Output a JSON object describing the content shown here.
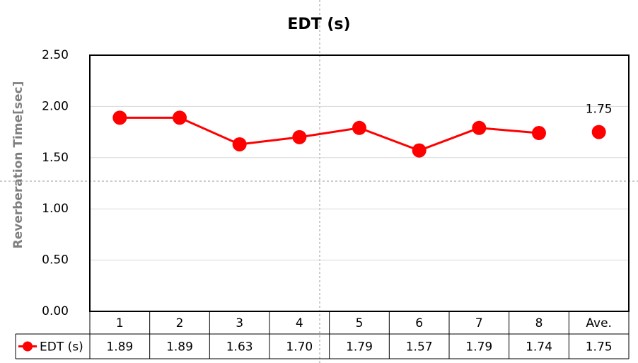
{
  "chart_data": {
    "type": "line",
    "title": "EDT  (s)",
    "y_label": "Reverberation Time[sec]",
    "categories": [
      "1",
      "2",
      "3",
      "4",
      "5",
      "6",
      "7",
      "8"
    ],
    "series": [
      {
        "name": "EDT (s)",
        "color": "#ff0000",
        "values": [
          1.89,
          1.89,
          1.63,
          1.7,
          1.79,
          1.57,
          1.79,
          1.74
        ],
        "value_labels": [
          "1.89",
          "1.89",
          "1.63",
          "1.70",
          "1.79",
          "1.57",
          "1.79",
          "1.74"
        ]
      }
    ],
    "average": {
      "label": "Ave.",
      "value": 1.75,
      "value_label": "1.75"
    },
    "ylim": [
      0,
      2.5
    ],
    "yticks": [
      {
        "value": 0,
        "label": "0.00"
      },
      {
        "value": 0.5,
        "label": "0.50"
      },
      {
        "value": 1,
        "label": "1.00"
      },
      {
        "value": 1.5,
        "label": "1.50"
      },
      {
        "value": 2,
        "label": "2.00"
      },
      {
        "value": 2.5,
        "label": "2.50"
      }
    ],
    "grid": true
  }
}
